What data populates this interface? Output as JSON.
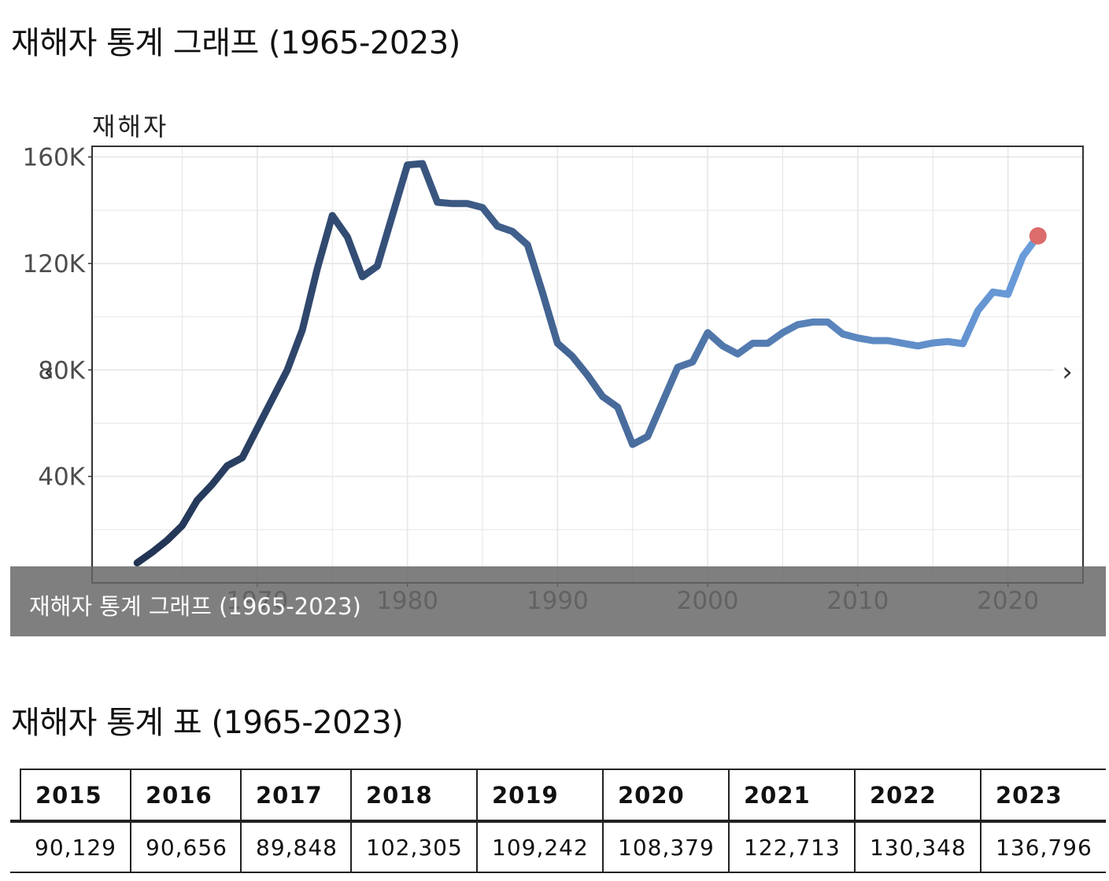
{
  "page": {
    "graph_heading": "재해자 통계 그래프 (1965-2023)",
    "table_heading": "재해자 통계 표 (1965-2023)",
    "caption": "재해자 통계 그래프 (1965-2023)",
    "prev_icon": "‹",
    "next_icon": "›"
  },
  "colors": {
    "line_start": "#1e2e4c",
    "line_end": "#6ea2e2",
    "highlight_point": "#dc6b6b",
    "grid": "#e6e6e6",
    "panel_border": "#333333"
  },
  "chart_data": {
    "type": "line",
    "title": "",
    "ylabel": "재해자",
    "xlabel": "",
    "xlim": [
      1959,
      2025
    ],
    "ylim": [
      0,
      164000
    ],
    "xticks": [
      1970,
      1980,
      1990,
      2000,
      2010,
      2020
    ],
    "yticks": [
      40000,
      80000,
      120000,
      160000
    ],
    "ytick_labels": [
      "40K",
      "80K",
      "120K",
      "160K"
    ],
    "grid": true,
    "highlight": {
      "x": 2022,
      "y": 130348
    },
    "series": [
      {
        "x": [
          1962,
          1963,
          1964,
          1965,
          1966,
          1967,
          1968,
          1969,
          1970,
          1971,
          1972,
          1973,
          1974,
          1975,
          1976,
          1977,
          1978,
          1979,
          1980,
          1981,
          1982,
          1983,
          1984,
          1985,
          1986,
          1987,
          1988,
          1989,
          1990,
          1991,
          1992,
          1993,
          1994,
          1995,
          1996,
          1997,
          1998,
          1999,
          2000,
          2001,
          2002,
          2003,
          2004,
          2005,
          2006,
          2007,
          2008,
          2009,
          2010,
          2011,
          2012,
          2013,
          2014,
          2015,
          2016,
          2017,
          2018,
          2019,
          2020,
          2021,
          2022
        ],
        "y": [
          7500,
          11500,
          16000,
          21500,
          31000,
          37000,
          44000,
          47000,
          58000,
          69000,
          80000,
          95000,
          118000,
          138000,
          130000,
          115000,
          119000,
          138000,
          157000,
          157500,
          143000,
          142500,
          142500,
          141000,
          134000,
          132000,
          127000,
          109000,
          90000,
          85000,
          78000,
          70000,
          66000,
          52000,
          55000,
          68000,
          81000,
          83000,
          94000,
          89000,
          86000,
          90000,
          90000,
          94000,
          97000,
          98000,
          98000,
          93500,
          92000,
          91000,
          91000,
          90000,
          89000,
          90129,
          90656,
          89848,
          102305,
          109242,
          108379,
          122713,
          130348
        ]
      }
    ]
  },
  "table": {
    "headers": [
      "2015",
      "2016",
      "2017",
      "2018",
      "2019",
      "2020",
      "2021",
      "2022",
      "2023"
    ],
    "values": [
      "90,129",
      "90,656",
      "89,848",
      "102,305",
      "109,242",
      "108,379",
      "122,713",
      "130,348",
      "136,796"
    ]
  }
}
